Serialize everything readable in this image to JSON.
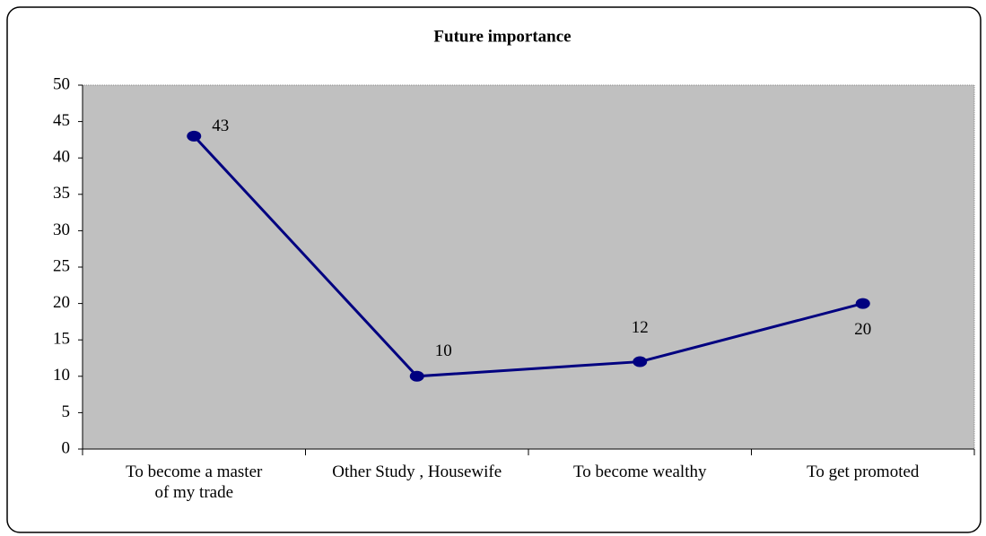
{
  "chart_data": {
    "type": "line",
    "title": "Future importance",
    "categories": [
      "To become a master of my trade",
      "Other Study , Housewife",
      "To become wealthy",
      "To get promoted"
    ],
    "values": [
      43,
      10,
      12,
      20
    ],
    "color": "#000080",
    "ylim": [
      0,
      50
    ],
    "yticks": [
      0,
      5,
      10,
      15,
      20,
      25,
      30,
      35,
      40,
      45,
      50
    ],
    "grid": false
  }
}
